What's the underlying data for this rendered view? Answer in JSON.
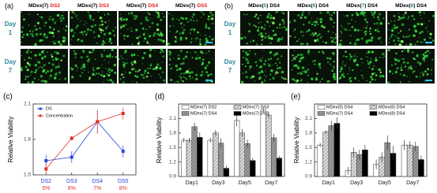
{
  "panel_a": {
    "label": "(a)",
    "columns": [
      {
        "prefix": "MDex(7)",
        "suffix": "DS2"
      },
      {
        "prefix": "MDex(7)",
        "suffix": "DS3"
      },
      {
        "prefix": "MDex(7)",
        "suffix": "DS4"
      },
      {
        "prefix": "MDex(7)",
        "suffix": "DS5"
      }
    ],
    "rows": [
      {
        "line1": "Day",
        "line2": "1"
      },
      {
        "line1": "Day",
        "line2": "7"
      }
    ]
  },
  "panel_b": {
    "label": "(b)",
    "columns": [
      {
        "pre": "MDex(",
        "num": "5",
        "post": ") DS4"
      },
      {
        "pre": "MDex(",
        "num": "6",
        "post": ") DS4"
      },
      {
        "pre": "MDex(",
        "num": "7",
        "post": ") DS4"
      },
      {
        "pre": "MDex(",
        "num": "8",
        "post": ") DS4"
      }
    ],
    "rows": [
      {
        "line1": "Day",
        "line2": "1"
      },
      {
        "line1": "Day",
        "line2": "7"
      }
    ]
  },
  "chart_data": [
    {
      "type": "line",
      "panel_label": "(c)",
      "ylabel": "Relative Viability",
      "categories": [
        "DS2",
        "DS3",
        "DS4",
        "DS5"
      ],
      "category_sublabels": [
        "5%",
        "6%",
        "7%",
        "8%"
      ],
      "ylim": [
        1.5,
        2.1
      ],
      "yticks": [
        1.5,
        1.8,
        2.1
      ],
      "series": [
        {
          "name": "DS",
          "color": "#2a46d6",
          "values": [
            1.62,
            1.65,
            1.95,
            1.7
          ],
          "errors": [
            0.05,
            0.05,
            0.1,
            0.05
          ]
        },
        {
          "name": "Concentration",
          "color": "#e0302a",
          "values": [
            1.55,
            1.81,
            1.95,
            2.02
          ],
          "errors": [
            0.05,
            0.02,
            0.1,
            0.05
          ]
        }
      ]
    },
    {
      "type": "bar",
      "panel_label": "(d)",
      "ylabel": "Relative Viability",
      "categories": [
        "Day1",
        "Day3",
        "Day5",
        "Day7"
      ],
      "ylim": [
        0.9,
        2.4
      ],
      "yticks": [
        0.9,
        1.2,
        1.5,
        1.8,
        2.1
      ],
      "series": [
        {
          "name": "MDex(7) DS2",
          "color": "#ffffff",
          "hatch": false,
          "values": [
            1.65,
            1.65,
            2.06,
            2.28
          ],
          "errors": [
            0.05,
            0.05,
            0.12,
            0.06
          ]
        },
        {
          "name": "MDex(7) DS3",
          "color": "#dddddd",
          "hatch": true,
          "values": [
            1.65,
            1.8,
            1.8,
            2.17
          ],
          "errors": [
            0.05,
            0.06,
            0.08,
            0.06
          ]
        },
        {
          "name": "MDex(7) DS4",
          "color": "#999999",
          "hatch": true,
          "values": [
            1.93,
            1.59,
            1.58,
            1.7
          ],
          "errors": [
            0.08,
            0.1,
            0.08,
            0.08
          ]
        },
        {
          "name": "MDex(7) DS5",
          "color": "#000000",
          "hatch": false,
          "values": [
            1.71,
            1.07,
            1.23,
            1.28
          ],
          "errors": [
            0.1,
            0.05,
            0.05,
            0.05
          ]
        }
      ]
    },
    {
      "type": "bar",
      "panel_label": "(e)",
      "ylabel": "Relative Viability",
      "categories": [
        "Day1",
        "Day3",
        "Day5",
        "Day7"
      ],
      "ylim": [
        0.9,
        2.4
      ],
      "yticks": [
        0.9,
        1.2,
        1.5,
        1.8,
        2.1
      ],
      "series": [
        {
          "name": "MDex(5) DS4",
          "color": "#ffffff",
          "hatch": false,
          "values": [
            1.55,
            1.02,
            1.15,
            1.55
          ],
          "errors": [
            0.04,
            0.08,
            0.1,
            0.1
          ]
        },
        {
          "name": "MDex(6) DS4",
          "color": "#dddddd",
          "hatch": true,
          "values": [
            1.82,
            1.4,
            1.3,
            1.55
          ],
          "errors": [
            0.04,
            0.1,
            0.1,
            0.08
          ]
        },
        {
          "name": "MDex(7) DS4",
          "color": "#999999",
          "hatch": true,
          "values": [
            1.95,
            1.35,
            1.6,
            1.52
          ],
          "errors": [
            0.1,
            0.1,
            0.15,
            0.1
          ]
        },
        {
          "name": "MDex(8) DS4",
          "color": "#000000",
          "hatch": false,
          "values": [
            2.0,
            1.45,
            1.38,
            1.25
          ],
          "errors": [
            0.12,
            0.1,
            0.15,
            0.08
          ]
        }
      ]
    }
  ]
}
